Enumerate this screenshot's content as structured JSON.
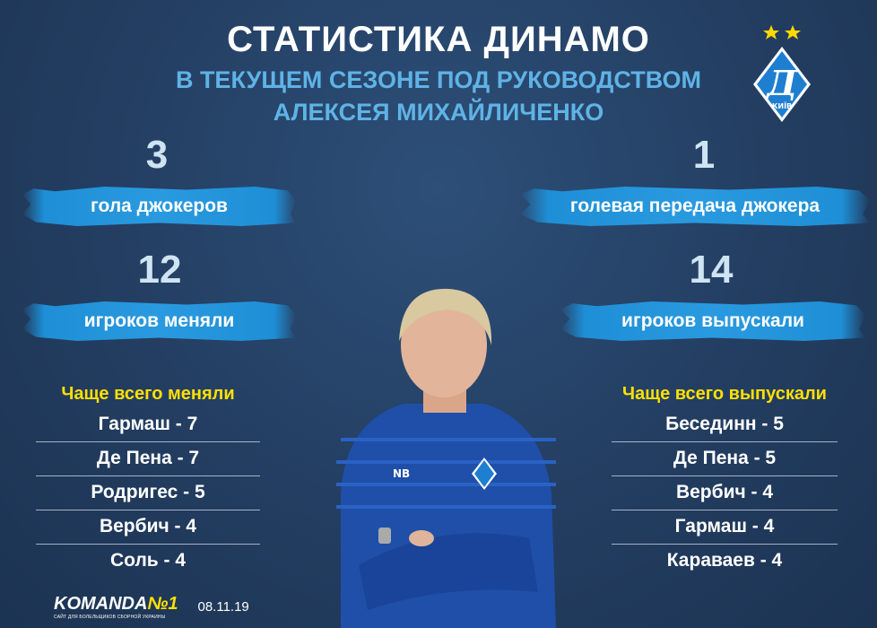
{
  "header": {
    "title": "СТАТИСТИКА ДИНАМО",
    "subtitle_line1": "В ТЕКУЩЕМ СЕЗОНЕ ПОД РУКОВОДСТВОМ",
    "subtitle_line2": "АЛЕКСЕЯ МИХАЙЛИЧЕНКО"
  },
  "logo": {
    "text": "КИЇВ",
    "stars": 2,
    "icon": "dynamo-kyiv-crest"
  },
  "stats": [
    {
      "value": "3",
      "label": "гола джокеров"
    },
    {
      "value": "1",
      "label": "голевая передача джокера"
    },
    {
      "value": "12",
      "label": "игроков меняли"
    },
    {
      "value": "14",
      "label": "игроков выпускали"
    }
  ],
  "left_list": {
    "title": "Чаще всего меняли",
    "items": [
      "Гармаш - 7",
      "Де Пена - 7",
      "Родригес - 5",
      "Вербич - 4",
      "Соль - 4"
    ]
  },
  "right_list": {
    "title": "Чаще всего выпускали",
    "items": [
      "Бесединн - 5",
      "Де Пена - 5",
      "Вербич - 4",
      "Гармаш - 4",
      "Караваев - 4"
    ]
  },
  "footer": {
    "brand": "KOMANDA",
    "brand_suffix": "№1",
    "tagline": "САЙТ ДЛЯ БОЛЕЛЬЩИКОВ СБОРНОЙ УКРАИНЫ",
    "date": "08.11.19"
  },
  "colors": {
    "background": "#243f63",
    "accent_blue": "#1e8fd6",
    "subtitle": "#5fb3e6",
    "highlight": "#ffe000"
  }
}
